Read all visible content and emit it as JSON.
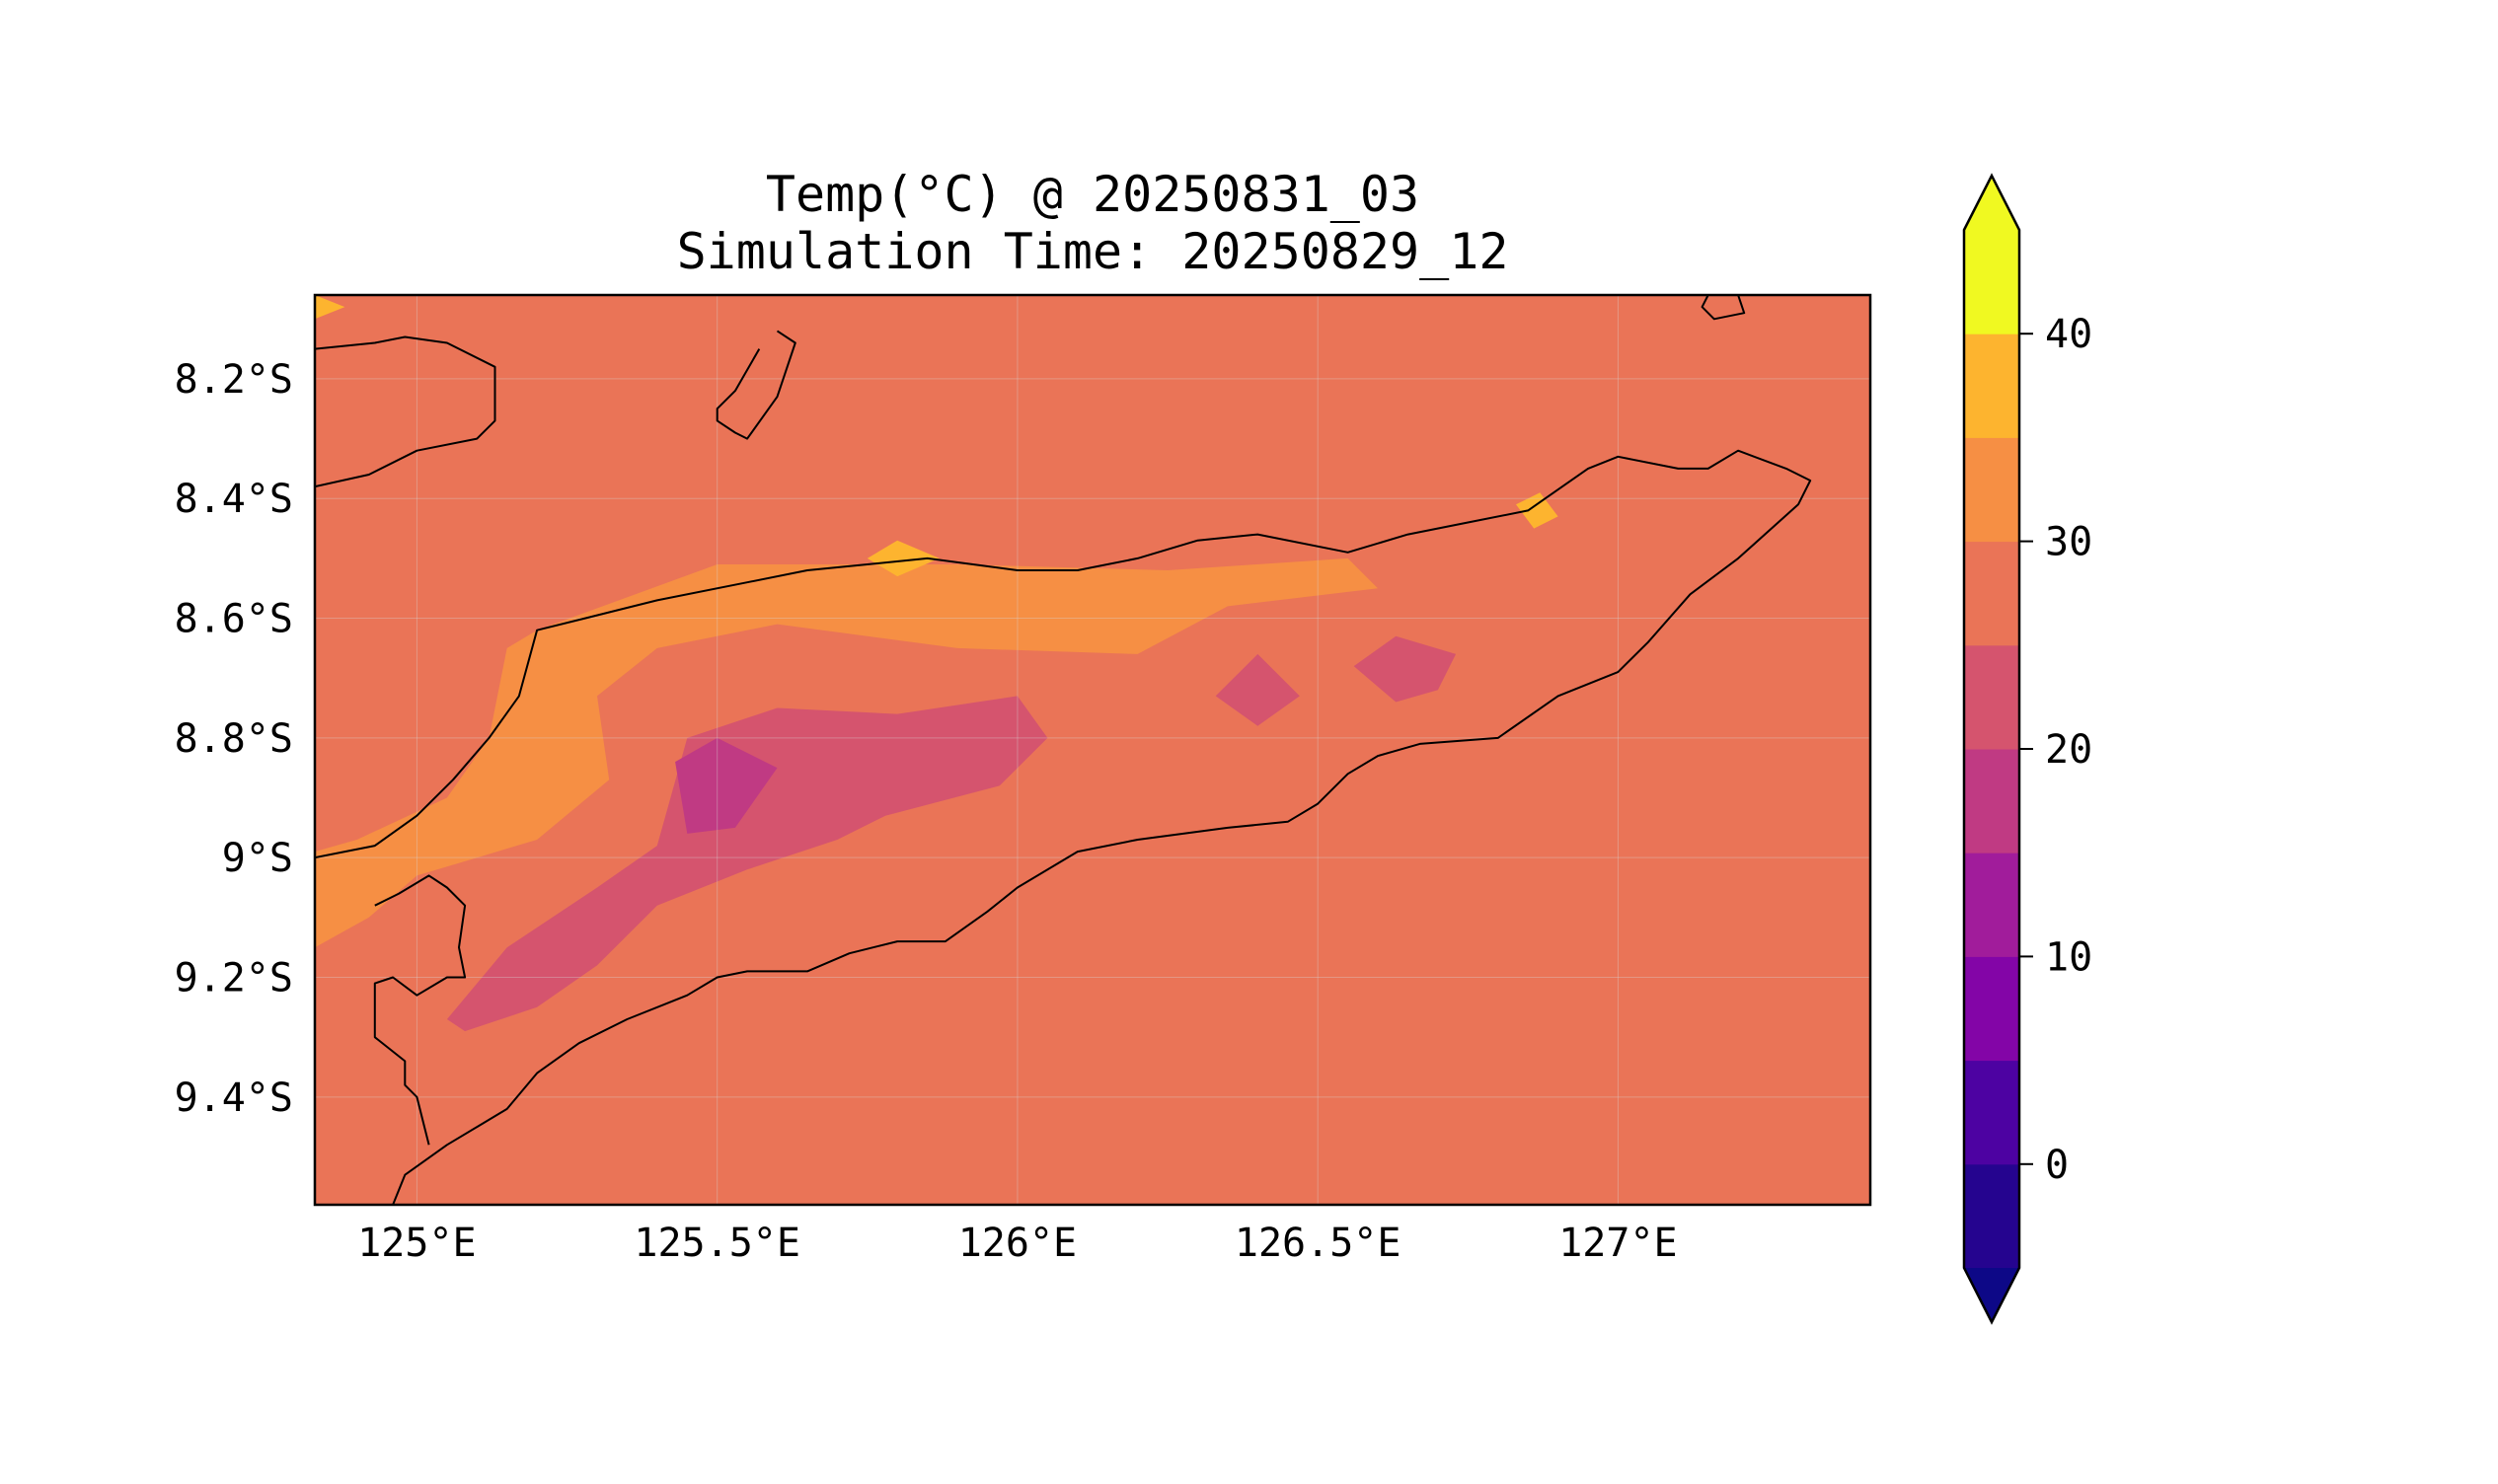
{
  "title_lines": [
    "Temp(°C) @ 20250831_03",
    "Simulation Time: 20250829_12"
  ],
  "map": {
    "extent_lon": [
      124.83,
      127.42
    ],
    "extent_lat": [
      -9.58,
      -8.06
    ],
    "background_value_c": 28,
    "coastline_color": "#000000"
  },
  "axes": {
    "x_ticks": [
      {
        "value": 125.0,
        "label": "125°E"
      },
      {
        "value": 125.5,
        "label": "125.5°E"
      },
      {
        "value": 126.0,
        "label": "126°E"
      },
      {
        "value": 126.5,
        "label": "126.5°E"
      },
      {
        "value": 127.0,
        "label": "127°E"
      }
    ],
    "y_ticks": [
      {
        "value": -8.2,
        "label": "8.2°S"
      },
      {
        "value": -8.4,
        "label": "8.4°S"
      },
      {
        "value": -8.6,
        "label": "8.6°S"
      },
      {
        "value": -8.8,
        "label": "8.8°S"
      },
      {
        "value": -9.0,
        "label": "9°S"
      },
      {
        "value": -9.2,
        "label": "9.2°S"
      },
      {
        "value": -9.4,
        "label": "9.4°S"
      }
    ]
  },
  "colorbar": {
    "bins": [
      {
        "lower": -5,
        "upper": 0,
        "color": "#25048f"
      },
      {
        "lower": 0,
        "upper": 5,
        "color": "#4d02a2"
      },
      {
        "lower": 5,
        "upper": 10,
        "color": "#8305a7"
      },
      {
        "lower": 10,
        "upper": 15,
        "color": "#a11c9b"
      },
      {
        "lower": 15,
        "upper": 20,
        "color": "#c03a83"
      },
      {
        "lower": 20,
        "upper": 25,
        "color": "#d5546e"
      },
      {
        "lower": 25,
        "upper": 30,
        "color": "#ea7457"
      },
      {
        "lower": 30,
        "upper": 35,
        "color": "#f68f44"
      },
      {
        "lower": 35,
        "upper": 40,
        "color": "#fdb42f"
      },
      {
        "lower": 40,
        "upper": 45,
        "color": "#f0f921"
      }
    ],
    "under_color": "#0d0887",
    "over_color": "#f0f921",
    "ticks": [
      {
        "value": 0,
        "label": "0"
      },
      {
        "value": 10,
        "label": "10"
      },
      {
        "value": 20,
        "label": "20"
      },
      {
        "value": 30,
        "label": "30"
      },
      {
        "value": 40,
        "label": "40"
      }
    ]
  },
  "field_regions": [
    {
      "name": "warm-band-north",
      "value_c": 32,
      "color": "#f68f44",
      "lonlat": [
        [
          125.2,
          -8.62
        ],
        [
          125.5,
          -8.51
        ],
        [
          125.9,
          -8.51
        ],
        [
          126.25,
          -8.52
        ],
        [
          126.55,
          -8.5
        ],
        [
          126.6,
          -8.55
        ],
        [
          126.35,
          -8.58
        ],
        [
          126.2,
          -8.66
        ],
        [
          125.9,
          -8.65
        ],
        [
          125.6,
          -8.61
        ],
        [
          125.4,
          -8.65
        ],
        [
          125.3,
          -8.73
        ],
        [
          125.32,
          -8.87
        ],
        [
          125.2,
          -8.97
        ],
        [
          125.1,
          -9.0
        ],
        [
          125.0,
          -9.03
        ],
        [
          124.92,
          -9.1
        ],
        [
          124.83,
          -9.15
        ],
        [
          124.83,
          -8.99
        ],
        [
          124.9,
          -8.97
        ],
        [
          125.05,
          -8.9
        ],
        [
          125.12,
          -8.8
        ],
        [
          125.15,
          -8.65
        ]
      ]
    },
    {
      "name": "warmer-patch-nw-corner",
      "value_c": 37,
      "color": "#fdb42f",
      "lonlat": [
        [
          124.83,
          -8.06
        ],
        [
          124.88,
          -8.08
        ],
        [
          124.83,
          -8.1
        ]
      ]
    },
    {
      "name": "warmer-patch-ne-coast",
      "value_c": 37,
      "color": "#fdb42f",
      "lonlat": [
        [
          126.83,
          -8.41
        ],
        [
          126.87,
          -8.39
        ],
        [
          126.9,
          -8.43
        ],
        [
          126.86,
          -8.45
        ]
      ]
    },
    {
      "name": "warmer-patch-north-coast",
      "value_c": 37,
      "color": "#fdb42f",
      "lonlat": [
        [
          125.75,
          -8.5
        ],
        [
          125.8,
          -8.47
        ],
        [
          125.87,
          -8.5
        ],
        [
          125.8,
          -8.53
        ]
      ]
    },
    {
      "name": "cool-inland-band",
      "value_c": 22,
      "color": "#d5546e",
      "lonlat": [
        [
          125.05,
          -9.27
        ],
        [
          125.15,
          -9.15
        ],
        [
          125.3,
          -9.05
        ],
        [
          125.4,
          -8.98
        ],
        [
          125.45,
          -8.8
        ],
        [
          125.6,
          -8.75
        ],
        [
          125.8,
          -8.76
        ],
        [
          126.0,
          -8.73
        ],
        [
          126.05,
          -8.8
        ],
        [
          125.97,
          -8.88
        ],
        [
          125.78,
          -8.93
        ],
        [
          125.7,
          -8.97
        ],
        [
          125.55,
          -9.02
        ],
        [
          125.4,
          -9.08
        ],
        [
          125.3,
          -9.18
        ],
        [
          125.2,
          -9.25
        ],
        [
          125.08,
          -9.29
        ]
      ]
    },
    {
      "name": "cool-patch-east-1",
      "value_c": 22,
      "color": "#d5546e",
      "lonlat": [
        [
          126.33,
          -8.73
        ],
        [
          126.4,
          -8.66
        ],
        [
          126.47,
          -8.73
        ],
        [
          126.4,
          -8.78
        ]
      ]
    },
    {
      "name": "cool-patch-east-2",
      "value_c": 22,
      "color": "#d5546e",
      "lonlat": [
        [
          126.56,
          -8.68
        ],
        [
          126.63,
          -8.63
        ],
        [
          126.73,
          -8.66
        ],
        [
          126.7,
          -8.72
        ],
        [
          126.63,
          -8.74
        ]
      ]
    },
    {
      "name": "coolest-core",
      "value_c": 18,
      "color": "#c03a83",
      "lonlat": [
        [
          125.43,
          -8.84
        ],
        [
          125.5,
          -8.8
        ],
        [
          125.6,
          -8.85
        ],
        [
          125.53,
          -8.95
        ],
        [
          125.45,
          -8.96
        ]
      ]
    }
  ],
  "coastlines": [
    {
      "name": "coast-timor-north",
      "lonlat": [
        [
          124.83,
          -9.0
        ],
        [
          124.93,
          -8.98
        ],
        [
          125.0,
          -8.93
        ],
        [
          125.06,
          -8.87
        ],
        [
          125.12,
          -8.8
        ],
        [
          125.17,
          -8.73
        ],
        [
          125.2,
          -8.62
        ],
        [
          125.28,
          -8.6
        ],
        [
          125.4,
          -8.57
        ],
        [
          125.55,
          -8.54
        ],
        [
          125.65,
          -8.52
        ],
        [
          125.75,
          -8.51
        ],
        [
          125.85,
          -8.5
        ],
        [
          126.0,
          -8.52
        ],
        [
          126.1,
          -8.52
        ],
        [
          126.2,
          -8.5
        ],
        [
          126.3,
          -8.47
        ],
        [
          126.4,
          -8.46
        ],
        [
          126.55,
          -8.49
        ],
        [
          126.65,
          -8.46
        ],
        [
          126.75,
          -8.44
        ],
        [
          126.85,
          -8.42
        ],
        [
          126.95,
          -8.35
        ],
        [
          127.0,
          -8.33
        ],
        [
          127.1,
          -8.35
        ],
        [
          127.15,
          -8.35
        ],
        [
          127.2,
          -8.32
        ],
        [
          127.28,
          -8.35
        ],
        [
          127.32,
          -8.37
        ],
        [
          127.3,
          -8.41
        ],
        [
          127.2,
          -8.5
        ],
        [
          127.12,
          -8.56
        ],
        [
          127.05,
          -8.64
        ],
        [
          127.0,
          -8.69
        ],
        [
          126.9,
          -8.73
        ],
        [
          126.8,
          -8.8
        ],
        [
          126.67,
          -8.81
        ],
        [
          126.6,
          -8.83
        ],
        [
          126.55,
          -8.86
        ],
        [
          126.5,
          -8.91
        ],
        [
          126.45,
          -8.94
        ],
        [
          126.35,
          -8.95
        ],
        [
          126.2,
          -8.97
        ],
        [
          126.1,
          -8.99
        ],
        [
          126.0,
          -9.05
        ],
        [
          125.95,
          -9.09
        ],
        [
          125.88,
          -9.14
        ],
        [
          125.8,
          -9.14
        ],
        [
          125.72,
          -9.16
        ],
        [
          125.65,
          -9.19
        ],
        [
          125.55,
          -9.19
        ],
        [
          125.5,
          -9.2
        ],
        [
          125.45,
          -9.23
        ],
        [
          125.35,
          -9.27
        ],
        [
          125.27,
          -9.31
        ],
        [
          125.2,
          -9.36
        ],
        [
          125.15,
          -9.42
        ],
        [
          125.1,
          -9.45
        ],
        [
          125.05,
          -9.48
        ],
        [
          124.98,
          -9.53
        ],
        [
          124.96,
          -9.58
        ]
      ]
    },
    {
      "name": "coast-border-segment",
      "lonlat": [
        [
          124.93,
          -9.08
        ],
        [
          124.97,
          -9.06
        ],
        [
          125.02,
          -9.03
        ],
        [
          125.05,
          -9.05
        ],
        [
          125.08,
          -9.08
        ],
        [
          125.07,
          -9.15
        ],
        [
          125.08,
          -9.2
        ],
        [
          125.05,
          -9.2
        ],
        [
          125.0,
          -9.23
        ],
        [
          124.96,
          -9.2
        ],
        [
          124.93,
          -9.21
        ],
        [
          124.93,
          -9.3
        ],
        [
          124.98,
          -9.34
        ],
        [
          124.98,
          -9.38
        ],
        [
          125.0,
          -9.4
        ],
        [
          125.02,
          -9.48
        ]
      ]
    },
    {
      "name": "coast-west-island",
      "lonlat": [
        [
          124.83,
          -8.15
        ],
        [
          124.93,
          -8.14
        ],
        [
          124.98,
          -8.13
        ],
        [
          125.05,
          -8.14
        ],
        [
          125.13,
          -8.18
        ],
        [
          125.13,
          -8.27
        ],
        [
          125.1,
          -8.3
        ],
        [
          125.0,
          -8.32
        ],
        [
          124.92,
          -8.36
        ],
        [
          124.83,
          -8.38
        ]
      ]
    },
    {
      "name": "coast-atauro-island",
      "lonlat": [
        [
          125.6,
          -8.12
        ],
        [
          125.63,
          -8.14
        ],
        [
          125.6,
          -8.23
        ],
        [
          125.55,
          -8.3
        ],
        [
          125.53,
          -8.29
        ],
        [
          125.5,
          -8.27
        ],
        [
          125.5,
          -8.25
        ],
        [
          125.53,
          -8.22
        ],
        [
          125.57,
          -8.15
        ]
      ]
    },
    {
      "name": "coast-ne-island",
      "lonlat": [
        [
          127.2,
          -8.06
        ],
        [
          127.21,
          -8.09
        ],
        [
          127.16,
          -8.1
        ],
        [
          127.14,
          -8.08
        ],
        [
          127.15,
          -8.06
        ]
      ]
    }
  ]
}
